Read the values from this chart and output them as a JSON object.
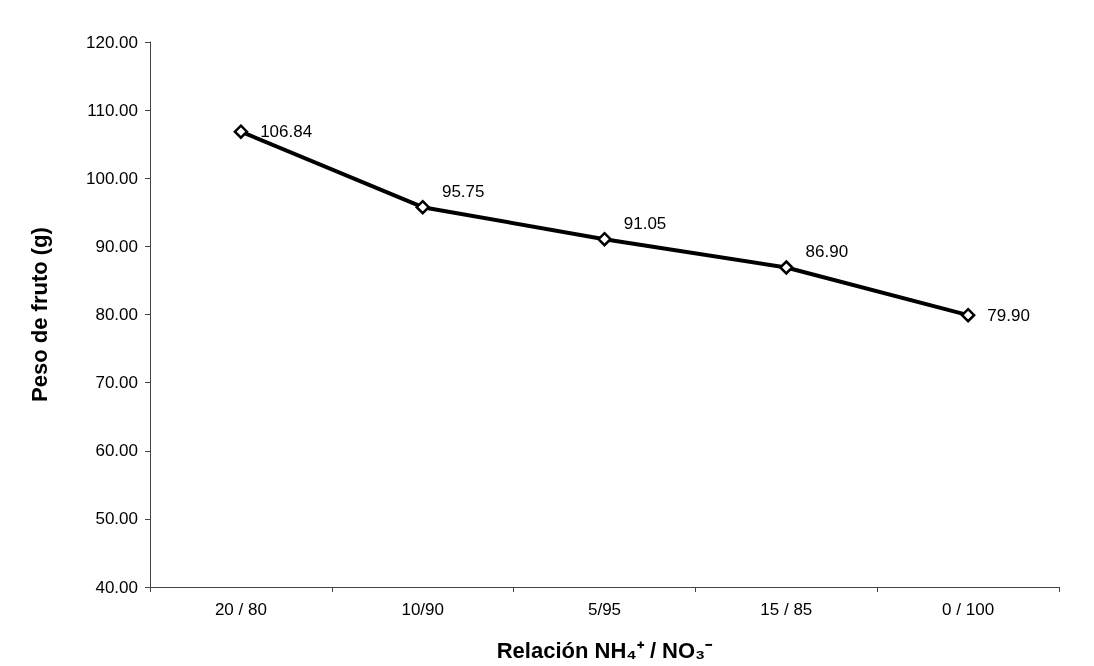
{
  "chart_data": {
    "type": "line",
    "xlabel": "Relación NH₄⁺ / NO₃⁻",
    "ylabel": "Peso de fruto (g)",
    "categories": [
      "20 / 80",
      "10/90",
      "5/95",
      "15 / 85",
      "0 / 100"
    ],
    "series": [
      {
        "color": "#000000",
        "values": [
          106.84,
          95.75,
          91.05,
          86.9,
          79.9
        ],
        "value_labels": [
          "106.84",
          "95.75",
          "91.05",
          "86.90",
          "79.90"
        ]
      }
    ],
    "ylim": [
      40,
      120
    ],
    "yticks": [
      {
        "value": 40,
        "label": "40.00"
      },
      {
        "value": 50,
        "label": "50.00"
      },
      {
        "value": 60,
        "label": "60.00"
      },
      {
        "value": 70,
        "label": "70.00"
      },
      {
        "value": 80,
        "label": "80.00"
      },
      {
        "value": 90,
        "label": "90.00"
      },
      {
        "value": 100,
        "label": "100.00"
      },
      {
        "value": 110,
        "label": "110.00"
      },
      {
        "value": 120,
        "label": "120.00"
      }
    ],
    "grid": false,
    "marker": "diamond",
    "line_style": "solid"
  }
}
